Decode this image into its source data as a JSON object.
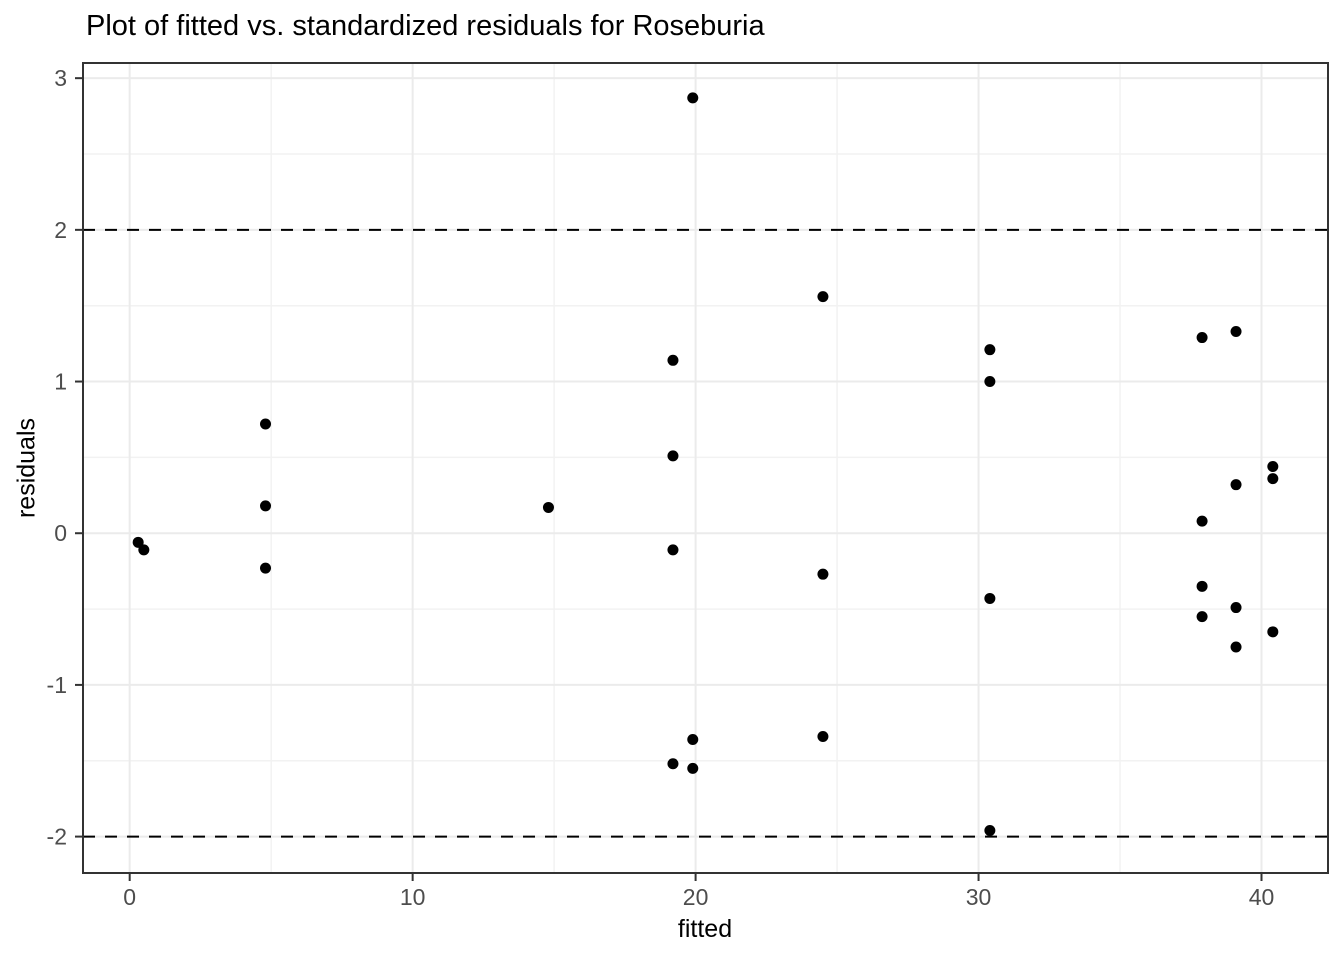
{
  "chart_data": {
    "type": "scatter",
    "title": "Plot of fitted vs. standardized residuals for Roseburia",
    "xlabel": "fitted",
    "ylabel": "residuals",
    "xlim": [
      -1.65,
      42.35
    ],
    "ylim": [
      -2.24,
      3.1
    ],
    "x_ticks": [
      0,
      10,
      20,
      30,
      40
    ],
    "y_ticks": [
      -2,
      -1,
      0,
      1,
      2,
      3
    ],
    "x_minor_gridlines": [
      5,
      15,
      25,
      35
    ],
    "y_minor_gridlines": [
      -1.5,
      -0.5,
      0.5,
      1.5,
      2.5
    ],
    "reference_lines": [
      {
        "y": 2,
        "style": "dashed",
        "color": "#000000"
      },
      {
        "y": -2,
        "style": "dashed",
        "color": "#000000"
      }
    ],
    "grid": true,
    "legend": false,
    "points": [
      [
        0.3,
        -0.06
      ],
      [
        0.5,
        -0.11
      ],
      [
        4.8,
        0.72
      ],
      [
        4.8,
        0.18
      ],
      [
        4.8,
        -0.23
      ],
      [
        14.8,
        0.17
      ],
      [
        19.9,
        2.87
      ],
      [
        19.2,
        1.14
      ],
      [
        19.2,
        0.51
      ],
      [
        19.2,
        -0.11
      ],
      [
        19.2,
        -1.52
      ],
      [
        19.9,
        -1.36
      ],
      [
        19.9,
        -1.55
      ],
      [
        24.5,
        1.56
      ],
      [
        24.5,
        -0.27
      ],
      [
        24.5,
        -1.34
      ],
      [
        30.4,
        1.21
      ],
      [
        30.4,
        1.0
      ],
      [
        30.4,
        -0.43
      ],
      [
        30.4,
        -1.96
      ],
      [
        37.9,
        1.29
      ],
      [
        37.9,
        0.08
      ],
      [
        37.9,
        -0.35
      ],
      [
        37.9,
        -0.55
      ],
      [
        39.1,
        1.33
      ],
      [
        39.1,
        0.32
      ],
      [
        39.1,
        -0.49
      ],
      [
        39.1,
        -0.75
      ],
      [
        40.4,
        0.44
      ],
      [
        40.4,
        0.36
      ],
      [
        40.4,
        -0.65
      ]
    ],
    "style": {
      "point_color": "#000000",
      "point_radius": 5.5,
      "panel_background": "#ffffff",
      "panel_border_color": "#333333",
      "major_grid_color": "#EBEBEB",
      "minor_grid_color": "#F2F2F2",
      "tick_color": "#333333",
      "tick_label_color": "#4D4D4D"
    }
  }
}
